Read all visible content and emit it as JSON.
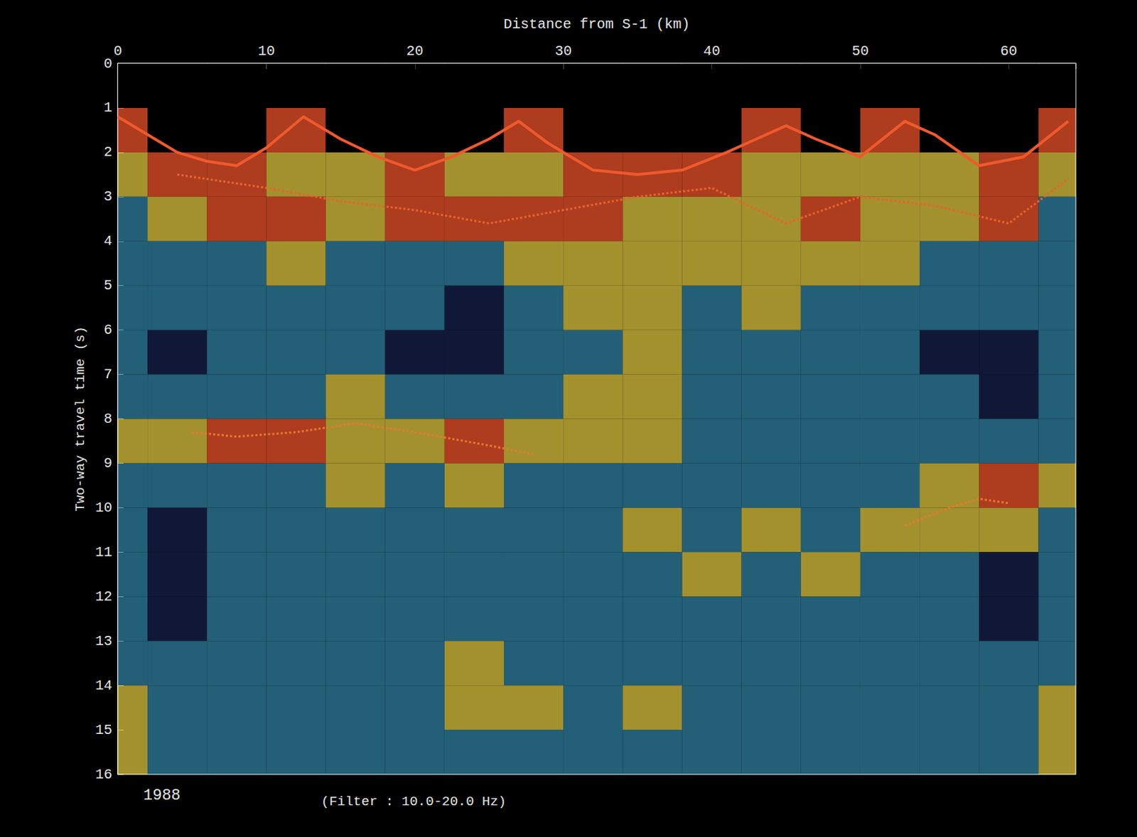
{
  "chart_data": {
    "type": "seismic_section",
    "x_label": "Distance from S-1 (km)",
    "y_label": "Two-way travel time (s)",
    "annotations": [
      "1988",
      "(Filter : 10.0-20.0 Hz)"
    ],
    "xlim": [
      0,
      64.5
    ],
    "xticks": [
      0,
      10,
      20,
      30,
      40,
      50,
      60
    ],
    "ylim": [
      0,
      16
    ],
    "yticks": [
      0,
      1,
      2,
      3,
      4,
      5,
      6,
      7,
      8,
      9,
      10,
      11,
      12,
      13,
      14,
      15,
      16
    ],
    "grid": false,
    "cells": {
      "x": [
        0,
        4,
        8,
        12,
        16,
        20,
        24,
        28,
        32,
        36,
        40,
        44,
        48,
        52,
        56,
        60,
        64
      ],
      "t": [
        0.5,
        1.5,
        2.5,
        3.5,
        4.5,
        5.5,
        6.5,
        7.5,
        8.5,
        9.5,
        10.5,
        11.5,
        12.5,
        13.5,
        14.5,
        15.5
      ],
      "values": [
        [
          0,
          0,
          0,
          0,
          0,
          0,
          0,
          0,
          0,
          0,
          0,
          0,
          0,
          0,
          0,
          0,
          0
        ],
        [
          4,
          0,
          0,
          4,
          0,
          0,
          0,
          4,
          0,
          0,
          0,
          4,
          0,
          4,
          0,
          0,
          4
        ],
        [
          3,
          4,
          4,
          3,
          3,
          4,
          3,
          3,
          4,
          4,
          4,
          3,
          3,
          3,
          3,
          4,
          3
        ],
        [
          2,
          3,
          4,
          4,
          3,
          4,
          4,
          4,
          4,
          3,
          3,
          3,
          4,
          3,
          3,
          4,
          2
        ],
        [
          2,
          2,
          2,
          3,
          2,
          2,
          2,
          3,
          3,
          3,
          3,
          3,
          3,
          3,
          2,
          2,
          2
        ],
        [
          2,
          2,
          2,
          2,
          2,
          2,
          1,
          2,
          3,
          3,
          2,
          3,
          2,
          2,
          2,
          2,
          2
        ],
        [
          2,
          1,
          2,
          2,
          2,
          1,
          1,
          2,
          2,
          3,
          2,
          2,
          2,
          2,
          1,
          1,
          2
        ],
        [
          2,
          2,
          2,
          2,
          3,
          2,
          2,
          2,
          3,
          3,
          2,
          2,
          2,
          2,
          2,
          1,
          2
        ],
        [
          3,
          3,
          4,
          4,
          3,
          3,
          4,
          3,
          3,
          3,
          2,
          2,
          2,
          2,
          2,
          2,
          2
        ],
        [
          2,
          2,
          2,
          2,
          3,
          2,
          3,
          2,
          2,
          2,
          2,
          2,
          2,
          2,
          3,
          4,
          3
        ],
        [
          2,
          1,
          2,
          2,
          2,
          2,
          2,
          2,
          2,
          3,
          2,
          3,
          2,
          3,
          3,
          3,
          2
        ],
        [
          2,
          1,
          2,
          2,
          2,
          2,
          2,
          2,
          2,
          2,
          3,
          2,
          3,
          2,
          2,
          1,
          2
        ],
        [
          2,
          1,
          2,
          2,
          2,
          2,
          2,
          2,
          2,
          2,
          2,
          2,
          2,
          2,
          2,
          1,
          2
        ],
        [
          2,
          2,
          2,
          2,
          2,
          2,
          3,
          2,
          2,
          2,
          2,
          2,
          2,
          2,
          2,
          2,
          2
        ],
        [
          3,
          2,
          2,
          2,
          2,
          2,
          3,
          3,
          2,
          3,
          2,
          2,
          2,
          2,
          2,
          2,
          3
        ],
        [
          3,
          2,
          2,
          2,
          2,
          2,
          2,
          2,
          2,
          2,
          2,
          2,
          2,
          2,
          2,
          2,
          3
        ]
      ]
    },
    "series": [
      {
        "color": "#ef5a2c",
        "line_style": "solid",
        "x": [
          0,
          2,
          4,
          6,
          8,
          10,
          12.5,
          15,
          17.5,
          20,
          22.5,
          25,
          27,
          29,
          32,
          35,
          38,
          41,
          43,
          45,
          47,
          50,
          53,
          55,
          58,
          61,
          64
        ],
        "values": [
          1.2,
          1.6,
          2.0,
          2.2,
          2.3,
          1.9,
          1.2,
          1.7,
          2.1,
          2.4,
          2.1,
          1.7,
          1.3,
          1.8,
          2.4,
          2.5,
          2.4,
          2.0,
          1.7,
          1.4,
          1.7,
          2.1,
          1.3,
          1.6,
          2.3,
          2.1,
          1.3
        ]
      },
      {
        "color": "#e8642e",
        "line_style": "dotted",
        "x": [
          4,
          10,
          15,
          20,
          25,
          30,
          35,
          40,
          45,
          50,
          55,
          60,
          64
        ],
        "values": [
          2.5,
          2.8,
          3.1,
          3.3,
          3.6,
          3.3,
          3.0,
          2.8,
          3.6,
          3.0,
          3.2,
          3.6,
          2.6
        ]
      },
      {
        "color": "#e8782e",
        "line_style": "dotted",
        "x": [
          5,
          8,
          12,
          16,
          20,
          25,
          28
        ],
        "values": [
          8.3,
          8.4,
          8.3,
          8.1,
          8.3,
          8.6,
          8.8
        ]
      },
      {
        "color": "#e8782e",
        "line_style": "dotted",
        "x": [
          53,
          56,
          58,
          60
        ],
        "values": [
          10.4,
          10.0,
          9.8,
          9.9
        ]
      }
    ]
  }
}
